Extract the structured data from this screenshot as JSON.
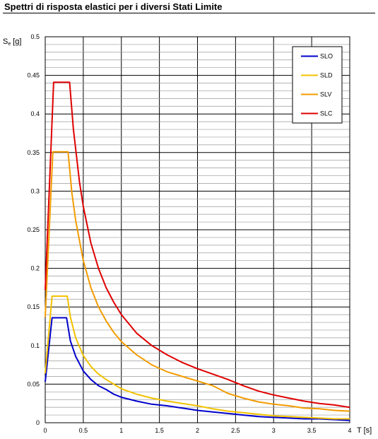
{
  "page": {
    "title": "Spettri di risposta elastici per i diversi Stati Limite"
  },
  "chart_data": {
    "type": "line",
    "title": "Spettri di risposta elastici per i diversi Stati Limite",
    "ylabel_main": "S",
    "ylabel_sub": "e",
    "ylabel_unit": "[g]",
    "xlabel": "T  [s]",
    "xlim": [
      0,
      4
    ],
    "ylim": [
      0,
      0.5
    ],
    "x_ticks": [
      "0",
      "0.5",
      "1",
      "1.5",
      "2",
      "2.5",
      "3",
      "3.5",
      "4"
    ],
    "y_ticks": [
      "0",
      "0.05",
      "0.1",
      "0.15",
      "0.2",
      "0.25",
      "0.3",
      "0.35",
      "0.4",
      "0.45",
      "0.5"
    ],
    "grid": true,
    "legend": "top-right",
    "series": [
      {
        "name": "SLO",
        "color": "#0000cc",
        "points": [
          [
            0,
            0.053
          ],
          [
            0.09,
            0.136
          ],
          [
            0.28,
            0.136
          ],
          [
            0.33,
            0.106
          ],
          [
            0.4,
            0.086
          ],
          [
            0.5,
            0.067
          ],
          [
            0.6,
            0.056
          ],
          [
            0.7,
            0.048
          ],
          [
            0.8,
            0.043
          ],
          [
            0.9,
            0.037
          ],
          [
            1.0,
            0.033
          ],
          [
            1.2,
            0.028
          ],
          [
            1.4,
            0.024
          ],
          [
            1.6,
            0.022
          ],
          [
            1.8,
            0.019
          ],
          [
            2.0,
            0.016
          ],
          [
            2.2,
            0.014
          ],
          [
            2.4,
            0.012
          ],
          [
            2.6,
            0.01
          ],
          [
            2.8,
            0.008
          ],
          [
            3.0,
            0.007
          ],
          [
            3.2,
            0.006
          ],
          [
            3.4,
            0.005
          ],
          [
            3.6,
            0.005
          ],
          [
            3.8,
            0.004
          ],
          [
            4.0,
            0.003
          ]
        ]
      },
      {
        "name": "SLD",
        "color": "#f2c200",
        "points": [
          [
            0,
            0.064
          ],
          [
            0.09,
            0.164
          ],
          [
            0.29,
            0.164
          ],
          [
            0.33,
            0.137
          ],
          [
            0.4,
            0.11
          ],
          [
            0.5,
            0.087
          ],
          [
            0.6,
            0.073
          ],
          [
            0.7,
            0.063
          ],
          [
            0.8,
            0.056
          ],
          [
            0.9,
            0.05
          ],
          [
            1.0,
            0.044
          ],
          [
            1.2,
            0.037
          ],
          [
            1.4,
            0.032
          ],
          [
            1.6,
            0.028
          ],
          [
            1.8,
            0.025
          ],
          [
            2.0,
            0.022
          ],
          [
            2.2,
            0.018
          ],
          [
            2.4,
            0.015
          ],
          [
            2.6,
            0.013
          ],
          [
            2.8,
            0.011
          ],
          [
            3.0,
            0.009
          ],
          [
            3.2,
            0.008
          ],
          [
            3.4,
            0.007
          ],
          [
            3.6,
            0.006
          ],
          [
            3.8,
            0.005
          ],
          [
            4.0,
            0.005
          ]
        ]
      },
      {
        "name": "SLV",
        "color": "#f39c00",
        "points": [
          [
            0,
            0.137
          ],
          [
            0.1,
            0.351
          ],
          [
            0.3,
            0.351
          ],
          [
            0.35,
            0.298
          ],
          [
            0.4,
            0.262
          ],
          [
            0.5,
            0.21
          ],
          [
            0.6,
            0.175
          ],
          [
            0.7,
            0.15
          ],
          [
            0.8,
            0.132
          ],
          [
            0.9,
            0.117
          ],
          [
            1.0,
            0.105
          ],
          [
            1.2,
            0.088
          ],
          [
            1.4,
            0.075
          ],
          [
            1.6,
            0.066
          ],
          [
            1.8,
            0.06
          ],
          [
            2.0,
            0.054
          ],
          [
            2.2,
            0.048
          ],
          [
            2.4,
            0.038
          ],
          [
            2.6,
            0.032
          ],
          [
            2.8,
            0.027
          ],
          [
            3.0,
            0.024
          ],
          [
            3.2,
            0.022
          ],
          [
            3.4,
            0.019
          ],
          [
            3.6,
            0.018
          ],
          [
            3.8,
            0.016
          ],
          [
            4.0,
            0.015
          ]
        ]
      },
      {
        "name": "SLC",
        "color": "#e00000",
        "points": [
          [
            0,
            0.172
          ],
          [
            0.11,
            0.441
          ],
          [
            0.32,
            0.441
          ],
          [
            0.37,
            0.38
          ],
          [
            0.45,
            0.312
          ],
          [
            0.5,
            0.28
          ],
          [
            0.6,
            0.233
          ],
          [
            0.7,
            0.2
          ],
          [
            0.8,
            0.175
          ],
          [
            0.9,
            0.156
          ],
          [
            1.0,
            0.14
          ],
          [
            1.2,
            0.116
          ],
          [
            1.4,
            0.1
          ],
          [
            1.6,
            0.088
          ],
          [
            1.8,
            0.078
          ],
          [
            2.0,
            0.07
          ],
          [
            2.2,
            0.063
          ],
          [
            2.4,
            0.056
          ],
          [
            2.6,
            0.048
          ],
          [
            2.8,
            0.041
          ],
          [
            3.0,
            0.036
          ],
          [
            3.2,
            0.032
          ],
          [
            3.4,
            0.028
          ],
          [
            3.6,
            0.025
          ],
          [
            3.8,
            0.023
          ],
          [
            4.0,
            0.02
          ]
        ]
      }
    ]
  }
}
